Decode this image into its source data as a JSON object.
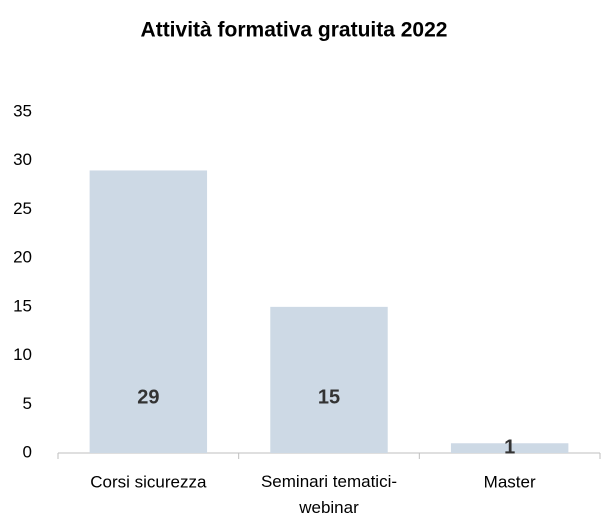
{
  "chart_data": {
    "type": "bar",
    "title": "Attività formativa gratuita 2022",
    "categories": [
      "Corsi sicurezza",
      "Seminari tematici-webinar",
      "Master"
    ],
    "values": [
      29,
      15,
      1
    ],
    "color": "#cdd9e5",
    "ylim": [
      0,
      35
    ],
    "yticks": [
      0,
      5,
      10,
      15,
      20,
      25,
      30,
      35
    ],
    "grid": false
  }
}
